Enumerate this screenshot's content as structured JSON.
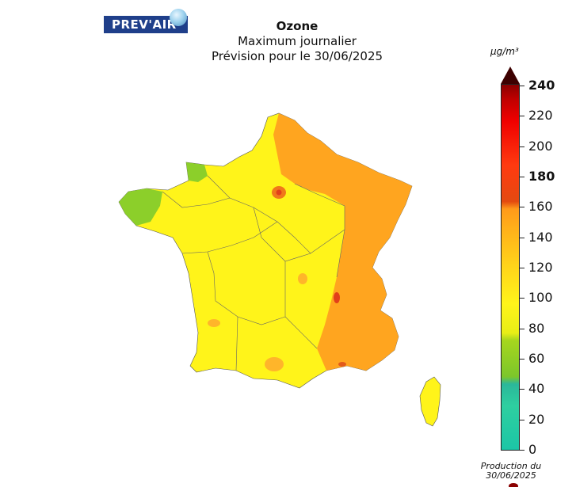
{
  "logo": {
    "text": "PREV'AIR"
  },
  "title": {
    "line1": "Ozone",
    "line2": "Maximum journalier",
    "line3": "Prévision pour le 30/06/2025"
  },
  "legend": {
    "unit": "µg/m³",
    "ticks": [
      {
        "label": "240",
        "bold": true
      },
      {
        "label": "220",
        "bold": false
      },
      {
        "label": "200",
        "bold": false
      },
      {
        "label": "180",
        "bold": true
      },
      {
        "label": "160",
        "bold": false
      },
      {
        "label": "140",
        "bold": false
      },
      {
        "label": "120",
        "bold": false
      },
      {
        "label": "100",
        "bold": false
      },
      {
        "label": "80",
        "bold": false
      },
      {
        "label": "60",
        "bold": false
      },
      {
        "label": "40",
        "bold": false
      },
      {
        "label": "20",
        "bold": false
      },
      {
        "label": "0",
        "bold": false
      }
    ],
    "colors": {
      "low": "#1cc6a6",
      "green": "#8ccf2a",
      "yellow": "#fff41a",
      "orange": "#ff9a1a",
      "red": "#f00000",
      "darkred": "#8a0000"
    }
  },
  "production": {
    "line1": "Production du",
    "line2": "30/06/2025"
  }
}
